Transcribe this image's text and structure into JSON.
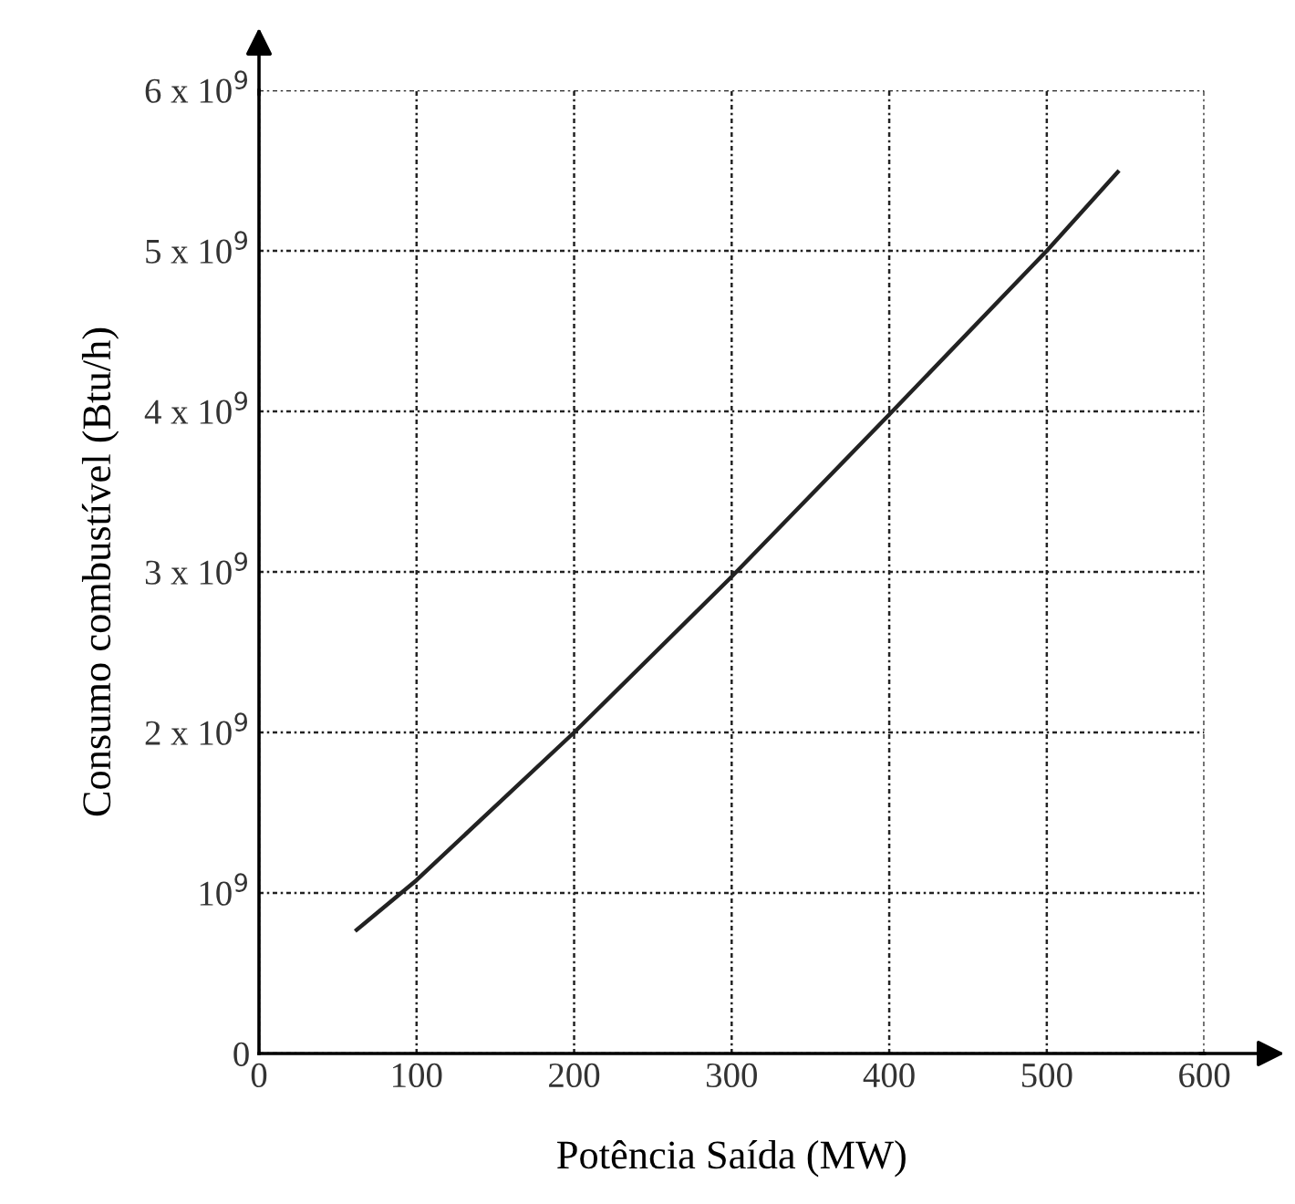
{
  "chart_data": {
    "type": "line",
    "xlabel": "Potência Saída (MW)",
    "ylabel": "Consumo combustível (Btu/h)",
    "x": [
      62,
      100,
      200,
      300,
      400,
      500,
      545
    ],
    "series": [
      {
        "color": "#222222",
        "values": [
          770000000,
          1080000000,
          2000000000,
          2970000000,
          3980000000,
          5000000000,
          5490000000
        ]
      }
    ],
    "xlim": [
      0,
      600
    ],
    "xticks": [
      0,
      100,
      200,
      300,
      400,
      500,
      600
    ],
    "ylim": [
      0,
      6000000000
    ],
    "yticks": [
      0,
      {
        "value": 1000000000,
        "label": "10$^{9}$"
      },
      {
        "value": 2000000000,
        "label": "2 x 10$^{9}$"
      },
      {
        "value": 3000000000,
        "label": "3 x 10$^{9}$"
      },
      {
        "value": 4000000000,
        "label": "4 x 10$^{9}$"
      },
      {
        "value": 5000000000,
        "label": "5 x 10$^{9}$"
      },
      {
        "value": 6000000000,
        "label": "6 x 10$^{9}$"
      }
    ],
    "grid": true,
    "marker": "none",
    "line_style": "solid",
    "legend": false
  }
}
